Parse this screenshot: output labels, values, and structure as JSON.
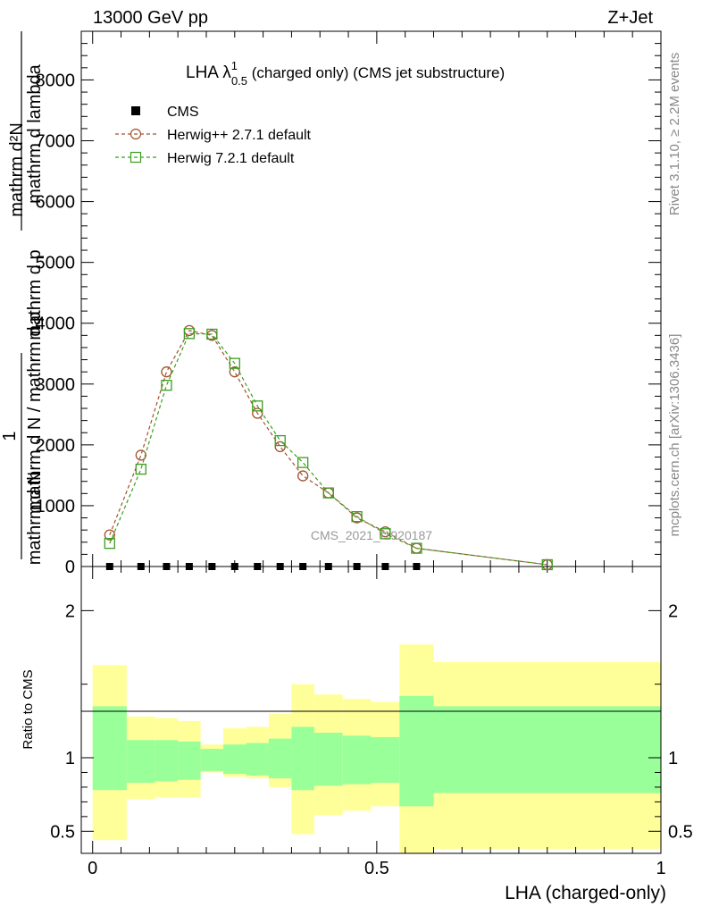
{
  "header": {
    "left": "13000 GeV pp",
    "right": "Z+Jet"
  },
  "side_labels": {
    "rivet": "Rivet 3.1.10, ≥ 2.2M events",
    "mcplots": "mcplots.cern.ch [arXiv:1306.3436]"
  },
  "watermark": "CMS_2021_I1920187",
  "title": {
    "prefix": "LHA λ",
    "sup": "1",
    "sub": "0.5",
    "suffix": " (charged only) (CMS jet substructure)"
  },
  "y_label": {
    "numerator": "mathrm d²N",
    "denominator_top": "mathrm d p",
    "denominator_tail": "mathrm d lambda",
    "one": "1",
    "denominator_bottom": "mathrm d N / mathrm d p",
    "denominator_bottom_tail": "mathrm d N"
  },
  "ratio_label": "Ratio to CMS",
  "x_label": "LHA (charged-only)",
  "legend": {
    "cms": "CMS",
    "herwigpp": "Herwig++ 2.7.1 default",
    "herwig7": "Herwig 7.2.1 default"
  },
  "colors": {
    "cms": "#000000",
    "herwigpp": "#a0522d",
    "herwig7": "#3b9e1e",
    "band_inner": "#99ff99",
    "band_outer": "#ffff99"
  },
  "chart_data": {
    "type": "line",
    "main_panel": {
      "x": [
        0.03,
        0.085,
        0.13,
        0.17,
        0.21,
        0.25,
        0.29,
        0.33,
        0.37,
        0.415,
        0.465,
        0.515,
        0.57,
        0.8
      ],
      "xlim": [
        -0.02,
        1.0
      ],
      "ylim": [
        0,
        8800
      ],
      "y_ticks": [
        "1000",
        "2000",
        "3000",
        "4000",
        "5000",
        "6000",
        "7000",
        "8000"
      ],
      "series": [
        {
          "name": "CMS",
          "values": [
            0,
            0,
            0,
            0,
            0,
            0,
            0,
            0,
            0,
            0,
            0,
            0,
            0,
            0
          ]
        },
        {
          "name": "Herwig++ 2.7.1 default",
          "values": [
            520,
            1830,
            3200,
            3880,
            3800,
            3200,
            2520,
            1970,
            1490,
            1210,
            800,
            570,
            300,
            30
          ]
        },
        {
          "name": "Herwig 7.2.1 default",
          "values": [
            380,
            1600,
            2980,
            3830,
            3820,
            3340,
            2640,
            2070,
            1710,
            1210,
            820,
            540,
            300,
            30
          ]
        }
      ]
    },
    "ratio_panel": {
      "ylim": [
        0.35,
        2.3
      ],
      "y_ticks": [
        "0.5",
        "1",
        "2"
      ],
      "x_ticks": [
        "0",
        "0.5",
        "1"
      ],
      "bin_edges": [
        0.0,
        0.06,
        0.11,
        0.15,
        0.19,
        0.23,
        0.27,
        0.31,
        0.35,
        0.39,
        0.44,
        0.49,
        0.54,
        0.6,
        1.0
      ],
      "inner_band_low": [
        0.78,
        0.83,
        0.84,
        0.85,
        0.91,
        0.89,
        0.88,
        0.86,
        0.78,
        0.81,
        0.82,
        0.83,
        0.67,
        0.76
      ],
      "inner_band_high": [
        1.35,
        1.12,
        1.12,
        1.11,
        1.06,
        1.09,
        1.1,
        1.13,
        1.21,
        1.17,
        1.15,
        1.14,
        1.42,
        1.35
      ],
      "outer_band_low": [
        0.44,
        0.72,
        0.73,
        0.73,
        0.9,
        0.87,
        0.86,
        0.8,
        0.48,
        0.61,
        0.64,
        0.67,
        0.35,
        0.38
      ],
      "outer_band_high": [
        1.63,
        1.28,
        1.27,
        1.25,
        1.09,
        1.2,
        1.21,
        1.3,
        1.5,
        1.43,
        1.4,
        1.38,
        1.77,
        1.65
      ]
    }
  }
}
